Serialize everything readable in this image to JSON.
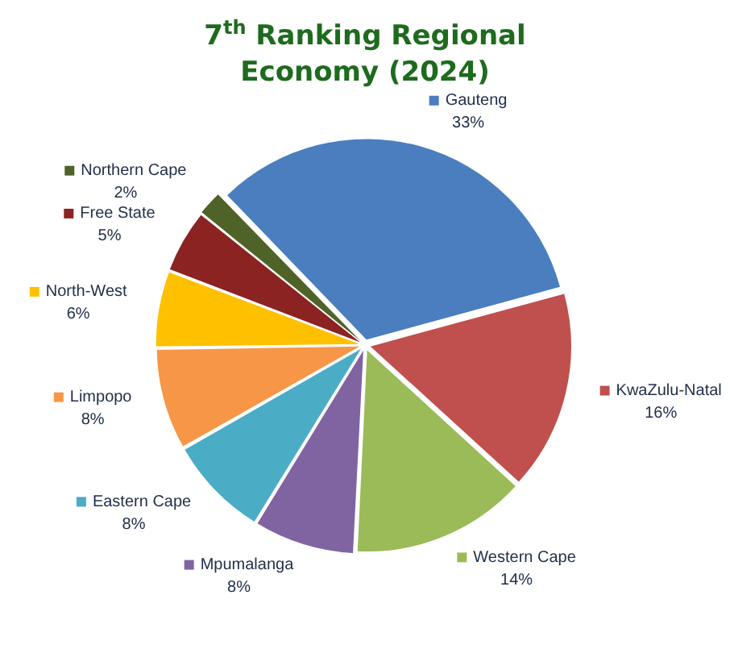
{
  "chart_data": {
    "type": "pie",
    "title": "7$^{th}$ Ranking Regional Economy (2024)",
    "categories": [
      "Gauteng",
      "KwaZulu-Natal",
      "Western Cape",
      "Mpumalanga",
      "Eastern Cape",
      "Limpopo",
      "North-West",
      "Free State",
      "Northern Cape"
    ],
    "values": [
      33,
      16,
      14,
      8,
      8,
      8,
      6,
      5,
      2
    ],
    "value_labels": [
      "33%",
      "16%",
      "14%",
      "8%",
      "8%",
      "8%",
      "6%",
      "5%",
      "2%"
    ],
    "legend": "right",
    "colors": [
      "#4a7ebf",
      "#c0504d",
      "#9bbb59",
      "#8064a2",
      "#4bacc6",
      "#f79646",
      "#ffc000",
      "#8b2323",
      "#4f6228"
    ]
  }
}
